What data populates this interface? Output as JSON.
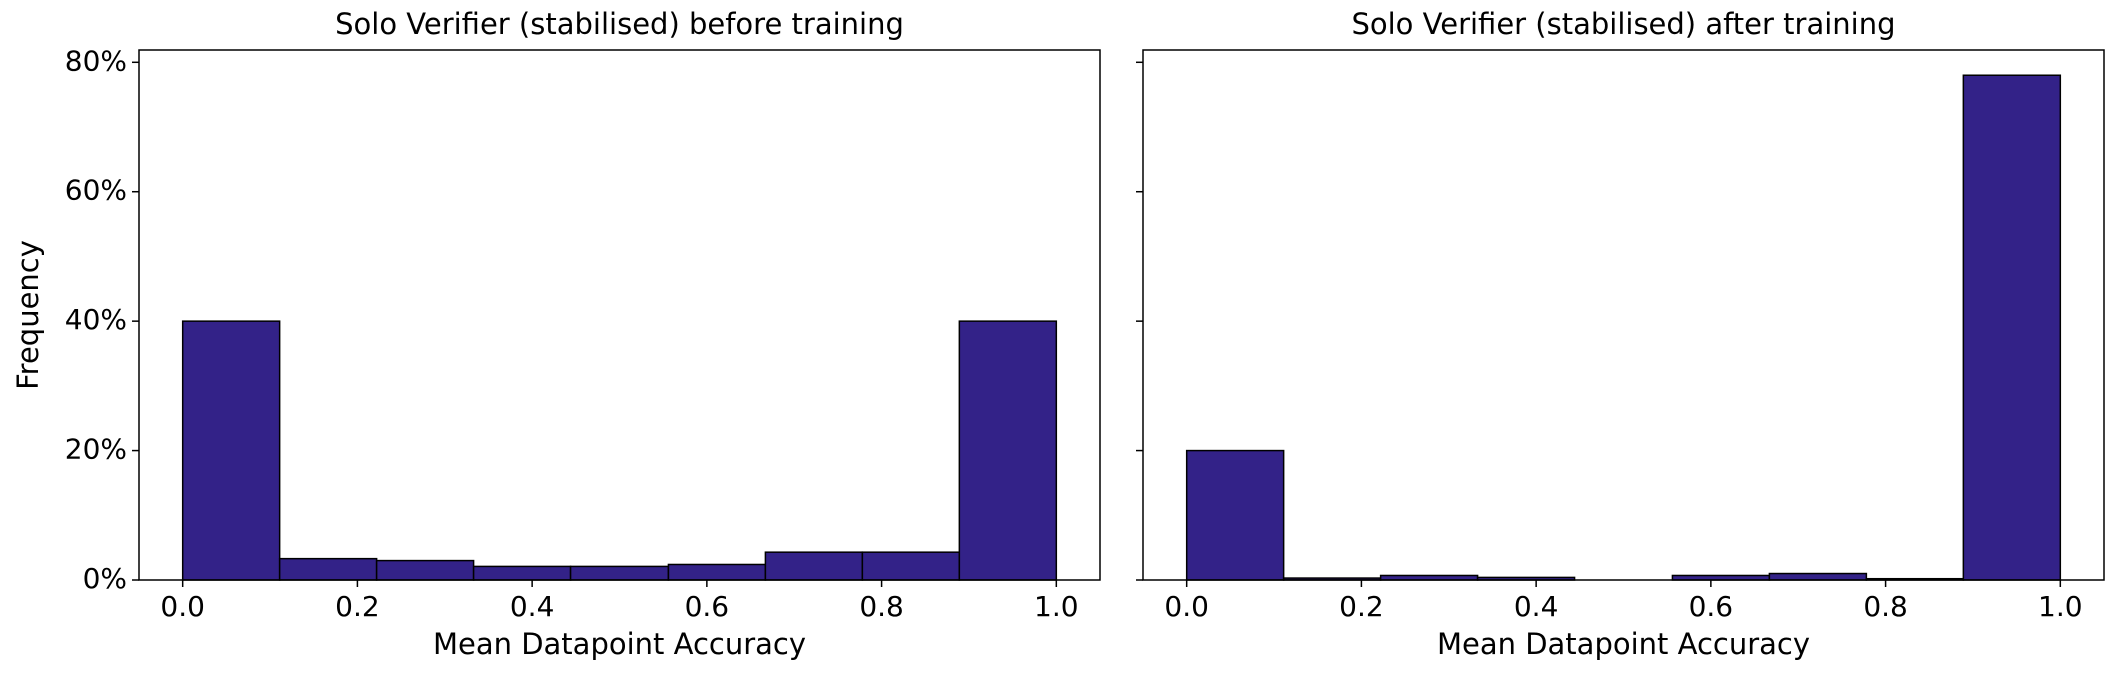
{
  "chart_data": [
    {
      "type": "histogram",
      "title": "Solo Verifier (stabilised) before training",
      "xlabel": "Mean Datapoint Accuracy",
      "ylabel": "Frequency",
      "bins": [
        0,
        0.111,
        0.222,
        0.333,
        0.444,
        0.556,
        0.667,
        0.778,
        0.889,
        1
      ],
      "values": [
        40,
        3.3,
        3.0,
        2.1,
        2.1,
        2.4,
        4.3,
        4.3,
        40
      ],
      "color": "#332288",
      "xlim": [
        -0.05,
        1.05
      ],
      "xticks": [
        {
          "value": 0,
          "label": "0.0"
        },
        0.2,
        0.4,
        0.6,
        0.8,
        {
          "value": 1,
          "label": "1.0"
        }
      ],
      "ylim": [
        0,
        81.9
      ],
      "yticks": [
        {
          "value": 0,
          "label": "0%"
        },
        {
          "value": 20,
          "label": "20%"
        },
        {
          "value": 40,
          "label": "40%"
        },
        {
          "value": 60,
          "label": "60%"
        },
        {
          "value": 80,
          "label": "80%"
        }
      ]
    },
    {
      "type": "histogram",
      "title": "Solo Verifier (stabilised) after training",
      "xlabel": "Mean Datapoint Accuracy",
      "bins": [
        0,
        0.111,
        0.222,
        0.333,
        0.444,
        0.556,
        0.667,
        0.778,
        0.889,
        1
      ],
      "values": [
        20,
        0.3,
        0.7,
        0.4,
        0,
        0.7,
        1.0,
        0.2,
        78
      ],
      "color": "#332288",
      "xlim": [
        -0.05,
        1.05
      ],
      "xticks": [
        {
          "value": 0,
          "label": "0.0"
        },
        0.2,
        0.4,
        0.6,
        0.8,
        {
          "value": 1,
          "label": "1.0"
        }
      ],
      "ylim": [
        0,
        81.9
      ],
      "yticks": [
        0,
        20,
        40,
        60,
        80
      ]
    }
  ]
}
